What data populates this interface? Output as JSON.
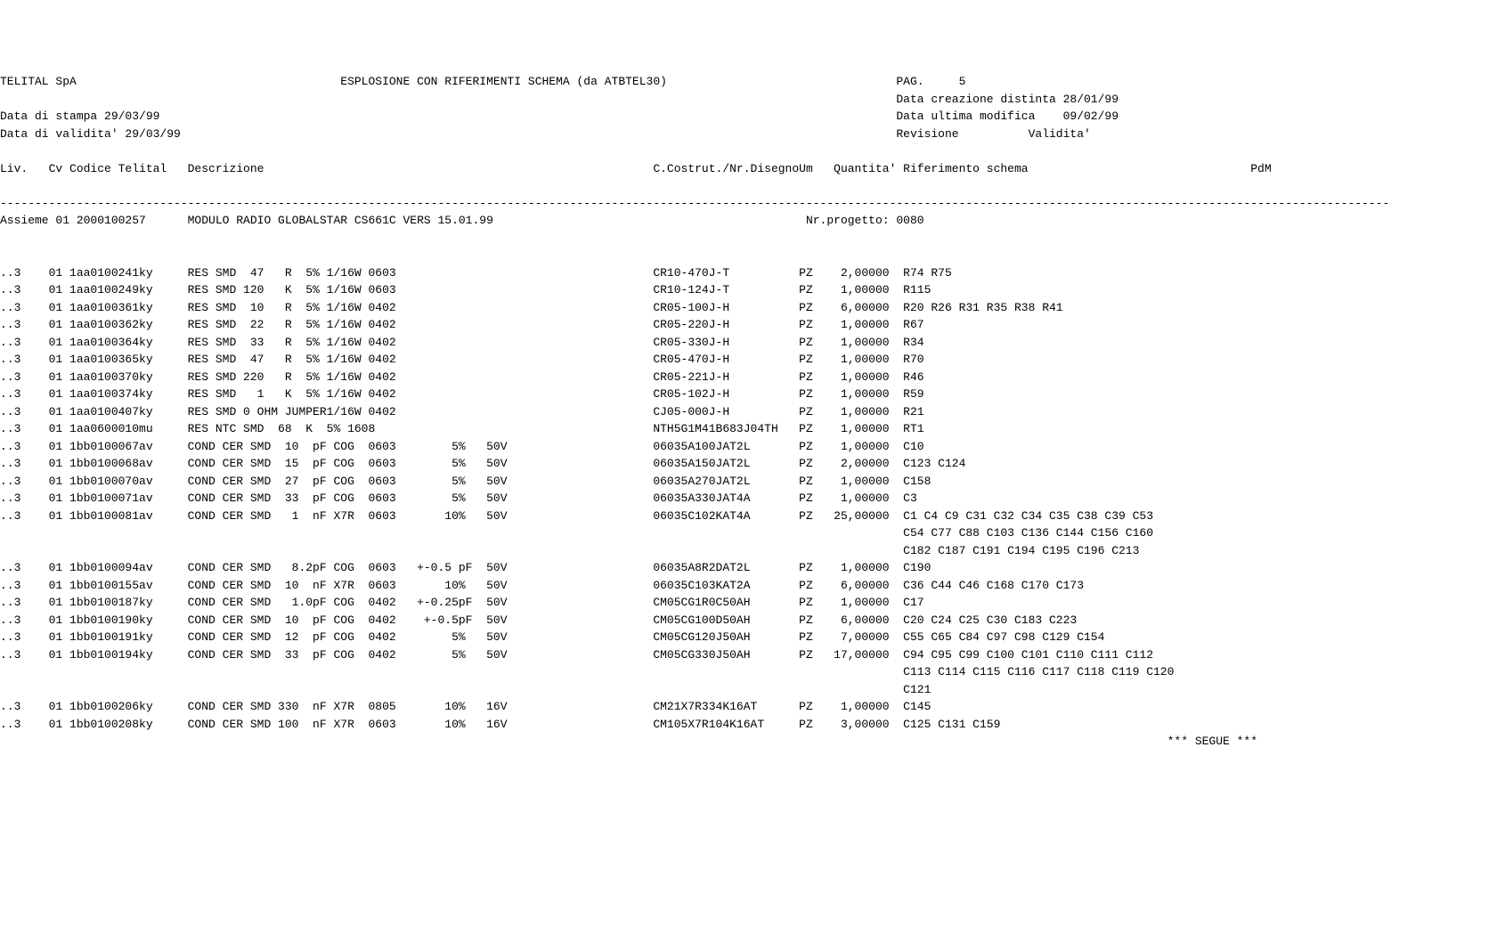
{
  "header": {
    "company": "TELITAL SpA",
    "title": "ESPLOSIONE CON RIFERIMENTI SCHEMA",
    "source": "(da ATBTEL30)",
    "page_label": "PAG.",
    "page_num": "5",
    "creation_label": "Data creazione distinta",
    "creation_date": "28/01/99",
    "print_label": "Data di stampa",
    "print_date": "29/03/99",
    "mod_label": "Data ultima modifica",
    "mod_date": "09/02/99",
    "valid_label": "Data di validita'",
    "valid_date": "29/03/99",
    "rev_label": "Revisione",
    "validita_label": "Validita'"
  },
  "columns": {
    "liv": "Liv.",
    "cv": "Cv",
    "codice": "Codice Telital",
    "descrizione": "Descrizione",
    "costrut": "C.Costrut./Nr.Disegno",
    "um": "Um",
    "quantita": "Quantita'",
    "riferimento": "Riferimento schema",
    "pdm": "PdM"
  },
  "assembly": {
    "label": "Assieme",
    "cv": "01",
    "code": "2000100257",
    "desc": "MODULO RADIO GLOBALSTAR CS661C VERS 15.01.99",
    "project_label": "Nr.progetto:",
    "project_num": "0080"
  },
  "rows": [
    {
      "liv": "..3",
      "cv": "01",
      "code": "1aa0100241ky",
      "desc": "RES SMD  47   R  5% 1/16W 0603",
      "costrut": "CR10-470J-T",
      "um": "PZ",
      "qty": "2,00000",
      "ref": "R74 R75",
      "cont": []
    },
    {
      "liv": "..3",
      "cv": "01",
      "code": "1aa0100249ky",
      "desc": "RES SMD 120   K  5% 1/16W 0603",
      "costrut": "CR10-124J-T",
      "um": "PZ",
      "qty": "1,00000",
      "ref": "R115",
      "cont": []
    },
    {
      "liv": "..3",
      "cv": "01",
      "code": "1aa0100361ky",
      "desc": "RES SMD  10   R  5% 1/16W 0402",
      "costrut": "CR05-100J-H",
      "um": "PZ",
      "qty": "6,00000",
      "ref": "R20 R26 R31 R35 R38 R41",
      "cont": []
    },
    {
      "liv": "..3",
      "cv": "01",
      "code": "1aa0100362ky",
      "desc": "RES SMD  22   R  5% 1/16W 0402",
      "costrut": "CR05-220J-H",
      "um": "PZ",
      "qty": "1,00000",
      "ref": "R67",
      "cont": []
    },
    {
      "liv": "..3",
      "cv": "01",
      "code": "1aa0100364ky",
      "desc": "RES SMD  33   R  5% 1/16W 0402",
      "costrut": "CR05-330J-H",
      "um": "PZ",
      "qty": "1,00000",
      "ref": "R34",
      "cont": []
    },
    {
      "liv": "..3",
      "cv": "01",
      "code": "1aa0100365ky",
      "desc": "RES SMD  47   R  5% 1/16W 0402",
      "costrut": "CR05-470J-H",
      "um": "PZ",
      "qty": "1,00000",
      "ref": "R70",
      "cont": []
    },
    {
      "liv": "..3",
      "cv": "01",
      "code": "1aa0100370ky",
      "desc": "RES SMD 220   R  5% 1/16W 0402",
      "costrut": "CR05-221J-H",
      "um": "PZ",
      "qty": "1,00000",
      "ref": "R46",
      "cont": []
    },
    {
      "liv": "..3",
      "cv": "01",
      "code": "1aa0100374ky",
      "desc": "RES SMD   1   K  5% 1/16W 0402",
      "costrut": "CR05-102J-H",
      "um": "PZ",
      "qty": "1,00000",
      "ref": "R59",
      "cont": []
    },
    {
      "liv": "..3",
      "cv": "01",
      "code": "1aa0100407ky",
      "desc": "RES SMD 0 OHM JUMPER1/16W 0402",
      "costrut": "CJ05-000J-H",
      "um": "PZ",
      "qty": "1,00000",
      "ref": "R21",
      "cont": []
    },
    {
      "liv": "..3",
      "cv": "01",
      "code": "1aa0600010mu",
      "desc": "RES NTC SMD  68  K  5% 1608",
      "costrut": "NTH5G1M41B683J04TH",
      "um": "PZ",
      "qty": "1,00000",
      "ref": "RT1",
      "cont": []
    },
    {
      "liv": "..3",
      "cv": "01",
      "code": "1bb0100067av",
      "desc": "COND CER SMD  10  pF COG  0603        5%   50V",
      "costrut": "06035A100JAT2L",
      "um": "PZ",
      "qty": "1,00000",
      "ref": "C10",
      "cont": []
    },
    {
      "liv": "..3",
      "cv": "01",
      "code": "1bb0100068av",
      "desc": "COND CER SMD  15  pF COG  0603        5%   50V",
      "costrut": "06035A150JAT2L",
      "um": "PZ",
      "qty": "2,00000",
      "ref": "C123 C124",
      "cont": []
    },
    {
      "liv": "..3",
      "cv": "01",
      "code": "1bb0100070av",
      "desc": "COND CER SMD  27  pF COG  0603        5%   50V",
      "costrut": "06035A270JAT2L",
      "um": "PZ",
      "qty": "1,00000",
      "ref": "C158",
      "cont": []
    },
    {
      "liv": "..3",
      "cv": "01",
      "code": "1bb0100071av",
      "desc": "COND CER SMD  33  pF COG  0603        5%   50V",
      "costrut": "06035A330JAT4A",
      "um": "PZ",
      "qty": "1,00000",
      "ref": "C3",
      "cont": []
    },
    {
      "liv": "..3",
      "cv": "01",
      "code": "1bb0100081av",
      "desc": "COND CER SMD   1  nF X7R  0603       10%   50V",
      "costrut": "06035C102KAT4A",
      "um": "PZ",
      "qty": "25,00000",
      "ref": "C1 C4 C9 C31 C32 C34 C35 C38 C39 C53",
      "cont": [
        "C54 C77 C88 C103 C136 C144 C156 C160",
        "C182 C187 C191 C194 C195 C196 C213"
      ]
    },
    {
      "liv": "..3",
      "cv": "01",
      "code": "1bb0100094av",
      "desc": "COND CER SMD   8.2pF COG  0603   +-0.5 pF  50V",
      "costrut": "06035A8R2DAT2L",
      "um": "PZ",
      "qty": "1,00000",
      "ref": "C190",
      "cont": []
    },
    {
      "liv": "..3",
      "cv": "01",
      "code": "1bb0100155av",
      "desc": "COND CER SMD  10  nF X7R  0603       10%   50V",
      "costrut": "06035C103KAT2A",
      "um": "PZ",
      "qty": "6,00000",
      "ref": "C36 C44 C46 C168 C170 C173",
      "cont": []
    },
    {
      "liv": "..3",
      "cv": "01",
      "code": "1bb0100187ky",
      "desc": "COND CER SMD   1.0pF COG  0402   +-0.25pF  50V",
      "costrut": "CM05CG1R0C50AH",
      "um": "PZ",
      "qty": "1,00000",
      "ref": "C17",
      "cont": []
    },
    {
      "liv": "..3",
      "cv": "01",
      "code": "1bb0100190ky",
      "desc": "COND CER SMD  10  pF COG  0402    +-0.5pF  50V",
      "costrut": "CM05CG100D50AH",
      "um": "PZ",
      "qty": "6,00000",
      "ref": "C20 C24 C25 C30 C183 C223",
      "cont": []
    },
    {
      "liv": "..3",
      "cv": "01",
      "code": "1bb0100191ky",
      "desc": "COND CER SMD  12  pF COG  0402        5%   50V",
      "costrut": "CM05CG120J50AH",
      "um": "PZ",
      "qty": "7,00000",
      "ref": "C55 C65 C84 C97 C98 C129 C154",
      "cont": []
    },
    {
      "liv": "..3",
      "cv": "01",
      "code": "1bb0100194ky",
      "desc": "COND CER SMD  33  pF COG  0402        5%   50V",
      "costrut": "CM05CG330J50AH",
      "um": "PZ",
      "qty": "17,00000",
      "ref": "C94 C95 C99 C100 C101 C110 C111 C112",
      "cont": [
        "C113 C114 C115 C116 C117 C118 C119 C120",
        "C121"
      ]
    },
    {
      "liv": "..3",
      "cv": "01",
      "code": "1bb0100206ky",
      "desc": "COND CER SMD 330  nF X7R  0805       10%   16V",
      "costrut": "CM21X7R334K16AT",
      "um": "PZ",
      "qty": "1,00000",
      "ref": "C145",
      "cont": []
    },
    {
      "liv": "..3",
      "cv": "01",
      "code": "1bb0100208ky",
      "desc": "COND CER SMD 100  nF X7R  0603       10%   16V",
      "costrut": "CM105X7R104K16AT",
      "um": "PZ",
      "qty": "3,00000",
      "ref": "C125 C131 C159",
      "cont": []
    }
  ],
  "footer": {
    "segue": "*** SEGUE ***"
  },
  "layout": {
    "LIV": 0,
    "CV": 7,
    "CODE": 10,
    "DESC": 27,
    "COSTRUT": 94,
    "UM": 115,
    "QTY": 120,
    "REF": 129,
    "PDM": 180,
    "TITLE": 49,
    "SOURCE": 83,
    "PAGE_LBL": 129,
    "PAGE_NUM": 138,
    "CREATION_LBL": 129,
    "CREATION_DATE": 153,
    "PRINT_LBL": 0,
    "PRINT_DATE": 15,
    "MOD_LBL": 129,
    "MOD_DATE": 153,
    "VALID_LBL": 0,
    "VALID_DATE": 18,
    "REV_LBL": 129,
    "VALIDITA_LBL": 148,
    "PROJ_LBL": 116,
    "PROJ_NUM": 129,
    "QTY_RIGHT": 128,
    "SEGUE": 168,
    "DASH_LEN": 200
  }
}
